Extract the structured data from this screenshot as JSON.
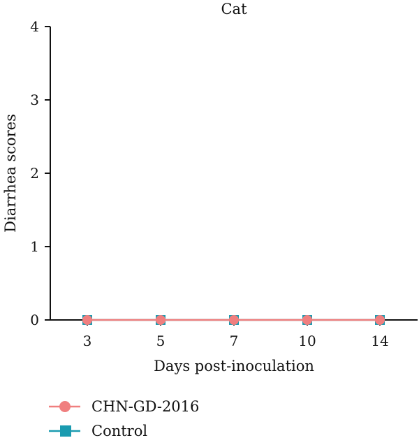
{
  "chart_data": {
    "type": "line",
    "title": "Cat",
    "xlabel": "Days post-inoculation",
    "ylabel": "Diarrhea scores",
    "categories": [
      "3",
      "5",
      "7",
      "10",
      "14"
    ],
    "yticks": [
      "0",
      "1",
      "2",
      "3",
      "4"
    ],
    "ylim": [
      0,
      4
    ],
    "grid": false,
    "legend_position": "bottom-left",
    "series": [
      {
        "name": "Control",
        "values": [
          0,
          0,
          0,
          0,
          0
        ],
        "color": "#1a9bb0",
        "marker": "square"
      },
      {
        "name": "CHN-GD-2016",
        "values": [
          0,
          0,
          0,
          0,
          0
        ],
        "color": "#f07f7f",
        "marker": "circle"
      }
    ],
    "legend_order": [
      "CHN-GD-2016",
      "Control"
    ]
  }
}
